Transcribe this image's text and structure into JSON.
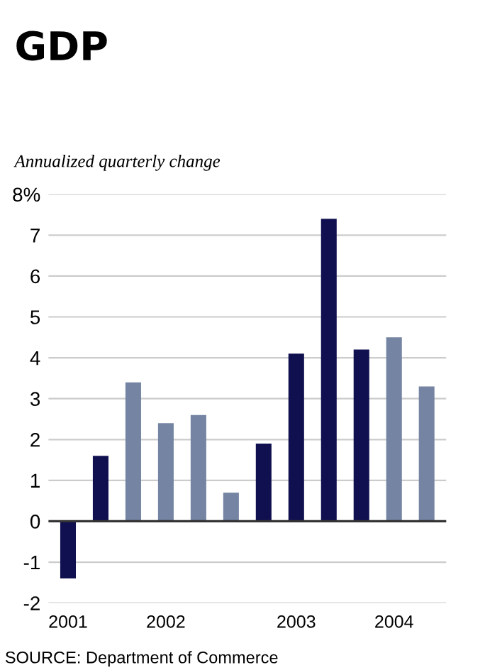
{
  "chart_data": {
    "type": "bar",
    "title": "GDP",
    "ylabel": "Annualized quarterly change",
    "categories": [
      "2001",
      null,
      null,
      "2002",
      null,
      null,
      null,
      "2003",
      null,
      null,
      "2004",
      null
    ],
    "values": [
      -1.4,
      1.6,
      3.4,
      2.4,
      2.6,
      0.7,
      1.9,
      4.1,
      7.4,
      4.2,
      4.5,
      3.3
    ],
    "colors": [
      "#101050",
      "#101050",
      "#7484a2",
      "#7484a2",
      "#7484a2",
      "#7484a2",
      "#101050",
      "#101050",
      "#101050",
      "#101050",
      "#7484a2",
      "#7484a2"
    ],
    "ylim": [
      -2,
      8
    ],
    "yticks": [
      {
        "value": -2,
        "label": "-2"
      },
      {
        "value": -1,
        "label": "-1"
      },
      0,
      1,
      2,
      3,
      4,
      5,
      6,
      7,
      {
        "value": 8,
        "label": "8%"
      }
    ],
    "grid": "y",
    "ref_lines": [
      {
        "axis": "y",
        "value": 0,
        "color": "#333333"
      }
    ],
    "annotations": [
      "SOURCE: Department of Commerce"
    ]
  }
}
